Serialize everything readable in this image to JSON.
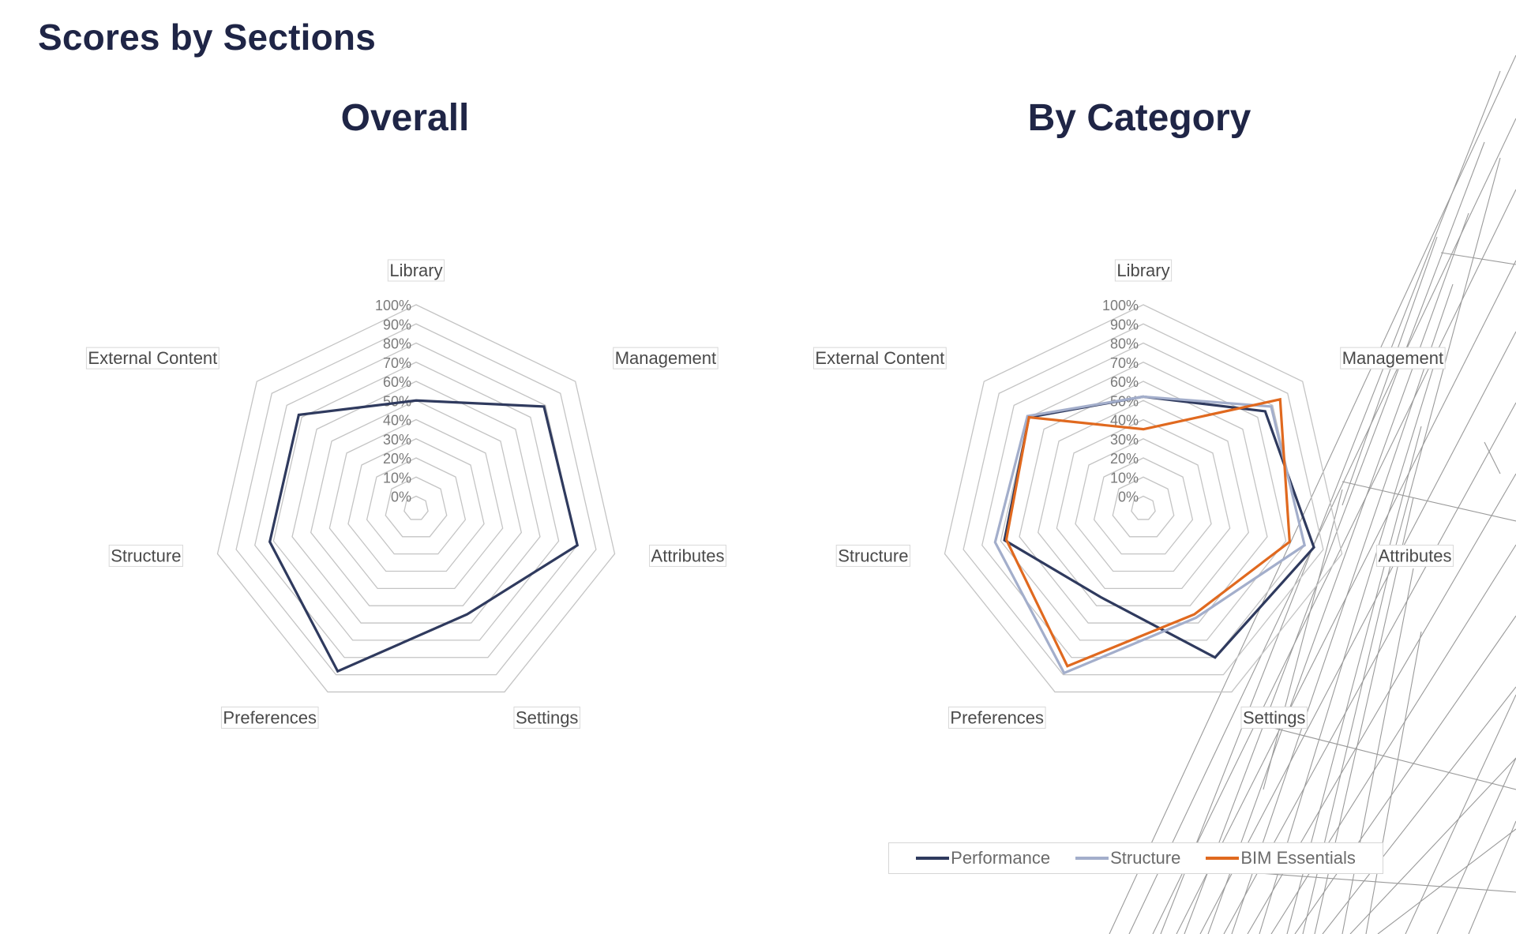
{
  "page": {
    "title": "Scores by Sections"
  },
  "colors": {
    "performance": "#2f3a5e",
    "structure": "#a3aecb",
    "bim_essentials": "#e0691f",
    "grid": "#c4c4c4",
    "tick_text": "#7a7a7a",
    "axis_label_text": "#4a4a4a"
  },
  "chart_data": [
    {
      "type": "radar",
      "title": "Overall",
      "axes": [
        "Library",
        "Management",
        "Attributes",
        "Settings",
        "Preferences",
        "Structure",
        "External Content"
      ],
      "tick_labels": [
        "0%",
        "10%",
        "20%",
        "30%",
        "40%",
        "50%",
        "60%",
        "70%",
        "80%",
        "90%",
        "100%"
      ],
      "range": [
        0,
        100
      ],
      "series": [
        {
          "name": "Overall",
          "color_key": "performance",
          "values": [
            50,
            79,
            80,
            55,
            88,
            72,
            72
          ]
        }
      ],
      "legend": null
    },
    {
      "type": "radar",
      "title": "By Category",
      "axes": [
        "Library",
        "Management",
        "Attributes",
        "Settings",
        "Preferences",
        "Structure",
        "External Content"
      ],
      "tick_labels": [
        "0%",
        "10%",
        "20%",
        "30%",
        "40%",
        "50%",
        "60%",
        "70%",
        "80%",
        "90%",
        "100%"
      ],
      "range": [
        0,
        100
      ],
      "series": [
        {
          "name": "Performance",
          "color_key": "performance",
          "values": [
            52,
            75,
            85,
            80,
            45,
            68,
            70
          ]
        },
        {
          "name": "Structure",
          "color_key": "structure",
          "values": [
            52,
            79,
            80,
            57,
            89,
            73,
            71
          ]
        },
        {
          "name": "BIM Essentials",
          "color_key": "bim_essentials",
          "values": [
            35,
            85,
            72,
            55,
            85,
            67,
            70
          ]
        }
      ],
      "legend": "bottom"
    }
  ]
}
